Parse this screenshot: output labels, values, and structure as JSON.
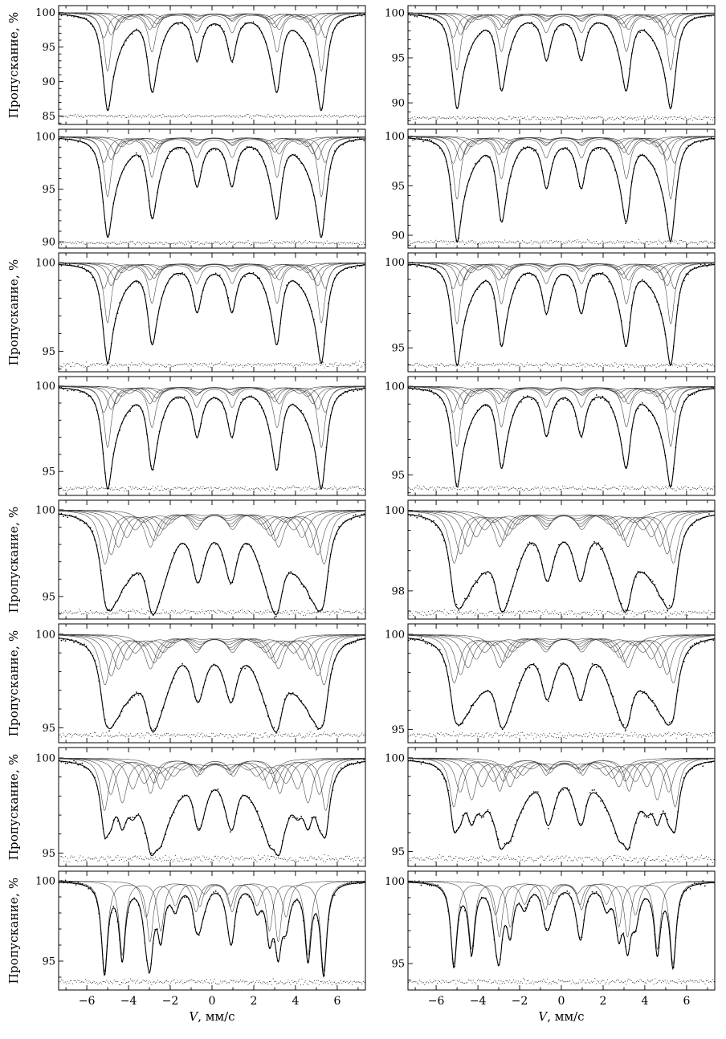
{
  "figure": {
    "ylabel": "Пропускание, %",
    "xlabel_var": "V",
    "xlabel_rest": ", мм/с",
    "x_range": [
      -7.35,
      7.35
    ],
    "x_ticks": [
      -6,
      -4,
      -2,
      0,
      2,
      4,
      6
    ],
    "x_tick_labels": [
      "−6",
      "−4",
      "−2",
      "0",
      "2",
      "4",
      "6"
    ],
    "x_minor_ticks": [
      -7,
      -5,
      -3,
      -1,
      1,
      3,
      5,
      7
    ],
    "line_ratios": [
      1,
      0.585,
      0.165
    ],
    "line_intensities": [
      3,
      2,
      1
    ],
    "colors": {
      "ink": "#000000",
      "subspectrum": "#3c3c3c",
      "background": "#ffffff"
    },
    "layout": {
      "rows": 8,
      "columns": 2
    }
  },
  "chart_data": [
    {
      "id": "r1-left",
      "row": 1,
      "col": "left",
      "type": "line",
      "show_ylabel": true,
      "y_ticks": [
        100,
        95,
        90,
        85
      ],
      "y_minor_step": 1,
      "y_range": [
        83.8,
        101.0
      ],
      "baseline": 100,
      "sextets": [
        [
          5.12,
          8.4,
          0.21,
          0.12
        ],
        [
          5.3,
          3.6,
          0.24,
          0.12
        ],
        [
          4.95,
          3.2,
          0.24,
          0.12
        ],
        [
          4.72,
          2.4,
          0.28,
          0.12
        ],
        [
          4.45,
          1.4,
          0.3,
          0.12
        ],
        [
          4.1,
          1.0,
          0.34,
          0.12
        ]
      ],
      "noise_sd": 0.12,
      "residual_level": 85.0,
      "residual_amp": 0.16,
      "seed": 11
    },
    {
      "id": "r1-right",
      "row": 1,
      "col": "right",
      "type": "line",
      "show_ylabel": false,
      "y_ticks": [
        100,
        95,
        90
      ],
      "y_minor_step": 1,
      "y_range": [
        87.6,
        100.8
      ],
      "baseline": 100,
      "sextets": [
        [
          5.12,
          6.3,
          0.21,
          0.12
        ],
        [
          5.3,
          2.7,
          0.24,
          0.12
        ],
        [
          4.95,
          2.4,
          0.24,
          0.12
        ],
        [
          4.72,
          1.8,
          0.28,
          0.12
        ],
        [
          4.45,
          1.05,
          0.3,
          0.12
        ],
        [
          4.1,
          0.75,
          0.34,
          0.12
        ]
      ],
      "noise_sd": 0.1,
      "residual_level": 88.3,
      "residual_amp": 0.14,
      "seed": 12
    },
    {
      "id": "r2-left",
      "row": 2,
      "col": "left",
      "type": "line",
      "show_ylabel": false,
      "y_ticks": [
        100,
        95,
        90
      ],
      "y_minor_step": 1,
      "y_range": [
        89.4,
        100.7
      ],
      "baseline": 100,
      "sextets": [
        [
          5.12,
          5.67,
          0.21,
          0.12
        ],
        [
          5.3,
          2.43,
          0.24,
          0.12
        ],
        [
          4.95,
          2.16,
          0.24,
          0.12
        ],
        [
          4.72,
          1.62,
          0.28,
          0.12
        ],
        [
          4.45,
          0.95,
          0.3,
          0.12
        ],
        [
          4.1,
          0.68,
          0.34,
          0.12
        ]
      ],
      "noise_sd": 0.09,
      "residual_level": 89.9,
      "residual_amp": 0.12,
      "seed": 21
    },
    {
      "id": "r2-right",
      "row": 2,
      "col": "right",
      "type": "line",
      "show_ylabel": false,
      "y_ticks": [
        100,
        95,
        90
      ],
      "y_minor_step": 1,
      "y_range": [
        88.7,
        100.7
      ],
      "baseline": 100,
      "sextets": [
        [
          5.12,
          6.3,
          0.21,
          0.12
        ],
        [
          5.3,
          2.7,
          0.24,
          0.12
        ],
        [
          4.95,
          2.4,
          0.24,
          0.12
        ],
        [
          4.72,
          1.8,
          0.28,
          0.12
        ],
        [
          4.45,
          1.05,
          0.3,
          0.12
        ],
        [
          4.1,
          0.75,
          0.34,
          0.12
        ]
      ],
      "noise_sd": 0.1,
      "residual_level": 89.3,
      "residual_amp": 0.13,
      "seed": 22
    },
    {
      "id": "r3-left",
      "row": 3,
      "col": "left",
      "type": "line",
      "show_ylabel": true,
      "y_ticks": [
        100,
        95
      ],
      "y_minor_step": 1,
      "y_range": [
        93.85,
        100.55
      ],
      "baseline": 100,
      "sextets": [
        [
          5.12,
          3.36,
          0.21,
          0.12
        ],
        [
          5.3,
          1.44,
          0.24,
          0.12
        ],
        [
          4.95,
          1.28,
          0.24,
          0.12
        ],
        [
          4.72,
          0.96,
          0.28,
          0.12
        ],
        [
          4.45,
          0.56,
          0.3,
          0.12
        ],
        [
          4.1,
          0.4,
          0.34,
          0.12
        ]
      ],
      "noise_sd": 0.06,
      "residual_level": 94.25,
      "residual_amp": 0.09,
      "seed": 31
    },
    {
      "id": "r3-right",
      "row": 3,
      "col": "right",
      "type": "line",
      "show_ylabel": false,
      "y_ticks": [
        100,
        95
      ],
      "y_minor_step": 1,
      "y_range": [
        93.6,
        100.55
      ],
      "baseline": 100,
      "sextets": [
        [
          5.12,
          3.57,
          0.21,
          0.12
        ],
        [
          5.3,
          1.53,
          0.24,
          0.12
        ],
        [
          4.95,
          1.36,
          0.24,
          0.12
        ],
        [
          4.72,
          1.02,
          0.28,
          0.12
        ],
        [
          4.45,
          0.6,
          0.3,
          0.12
        ],
        [
          4.1,
          0.43,
          0.34,
          0.12
        ]
      ],
      "noise_sd": 0.06,
      "residual_level": 94.0,
      "residual_amp": 0.09,
      "seed": 32
    },
    {
      "id": "r4-left",
      "row": 4,
      "col": "left",
      "type": "line",
      "show_ylabel": false,
      "y_ticks": [
        100,
        95
      ],
      "y_minor_step": 1,
      "y_range": [
        93.6,
        100.55
      ],
      "baseline": 100,
      "sextets": [
        [
          5.12,
          3.57,
          0.21,
          0.12
        ],
        [
          5.3,
          1.53,
          0.24,
          0.12
        ],
        [
          4.95,
          1.36,
          0.24,
          0.12
        ],
        [
          4.72,
          1.02,
          0.28,
          0.12
        ],
        [
          4.45,
          0.6,
          0.3,
          0.12
        ],
        [
          4.1,
          0.43,
          0.34,
          0.12
        ]
      ],
      "noise_sd": 0.06,
      "residual_level": 94.0,
      "residual_amp": 0.09,
      "seed": 41
    },
    {
      "id": "r4-right",
      "row": 4,
      "col": "right",
      "type": "line",
      "show_ylabel": false,
      "y_ticks": [
        100,
        95
      ],
      "y_minor_step": 1,
      "y_range": [
        93.85,
        100.55
      ],
      "baseline": 100,
      "sextets": [
        [
          5.12,
          3.36,
          0.21,
          0.12
        ],
        [
          5.3,
          1.44,
          0.24,
          0.12
        ],
        [
          4.95,
          1.28,
          0.24,
          0.12
        ],
        [
          4.72,
          0.96,
          0.28,
          0.12
        ],
        [
          4.45,
          0.56,
          0.3,
          0.12
        ],
        [
          4.1,
          0.4,
          0.34,
          0.12
        ]
      ],
      "noise_sd": 0.06,
      "residual_level": 94.25,
      "residual_amp": 0.09,
      "seed": 42
    },
    {
      "id": "r5-left",
      "row": 5,
      "col": "left",
      "type": "line",
      "show_ylabel": true,
      "y_ticks": [
        100,
        95
      ],
      "y_minor_step": 1,
      "y_range": [
        93.7,
        100.55
      ],
      "baseline": 100,
      "sextets": [
        [
          5.25,
          3.08,
          0.3,
          0.12
        ],
        [
          4.95,
          2.53,
          0.32,
          0.12
        ],
        [
          4.6,
          2.09,
          0.34,
          0.12
        ],
        [
          4.2,
          1.54,
          0.36,
          0.12
        ],
        [
          3.8,
          1.1,
          0.4,
          0.12
        ],
        [
          3.4,
          0.66,
          0.45,
          0.12
        ]
      ],
      "noise_sd": 0.07,
      "residual_level": 94.1,
      "residual_amp": 0.1,
      "seed": 51
    },
    {
      "id": "r5-right",
      "row": 5,
      "col": "right",
      "type": "line",
      "show_ylabel": false,
      "y_ticks": [
        100,
        98
      ],
      "y_minor_step": 0.5,
      "y_range": [
        97.3,
        100.25
      ],
      "baseline": 100,
      "sextets": [
        [
          5.25,
          1.29,
          0.3,
          0.12
        ],
        [
          4.95,
          1.06,
          0.32,
          0.12
        ],
        [
          4.6,
          0.87,
          0.34,
          0.12
        ],
        [
          4.2,
          0.64,
          0.36,
          0.12
        ],
        [
          3.8,
          0.46,
          0.4,
          0.12
        ],
        [
          3.4,
          0.28,
          0.45,
          0.12
        ]
      ],
      "noise_sd": 0.035,
      "residual_level": 97.45,
      "residual_amp": 0.05,
      "seed": 52
    },
    {
      "id": "r6-left",
      "row": 6,
      "col": "left",
      "type": "line",
      "show_ylabel": true,
      "y_ticks": [
        100,
        95
      ],
      "y_minor_step": 1,
      "y_range": [
        94.2,
        100.55
      ],
      "baseline": 100,
      "sextets": [
        [
          5.25,
          2.66,
          0.3,
          0.12
        ],
        [
          4.95,
          2.19,
          0.32,
          0.12
        ],
        [
          4.6,
          1.81,
          0.34,
          0.12
        ],
        [
          4.2,
          1.33,
          0.36,
          0.12
        ],
        [
          3.8,
          0.95,
          0.4,
          0.12
        ],
        [
          3.4,
          0.57,
          0.45,
          0.12
        ]
      ],
      "noise_sd": 0.07,
      "residual_level": 94.6,
      "residual_amp": 0.1,
      "seed": 61
    },
    {
      "id": "r6-right",
      "row": 6,
      "col": "right",
      "type": "line",
      "show_ylabel": false,
      "y_ticks": [
        100,
        95
      ],
      "y_minor_step": 1,
      "y_range": [
        94.3,
        100.55
      ],
      "baseline": 100,
      "sextets": [
        [
          5.25,
          2.52,
          0.3,
          0.12
        ],
        [
          4.95,
          2.07,
          0.32,
          0.12
        ],
        [
          4.6,
          1.71,
          0.34,
          0.12
        ],
        [
          4.2,
          1.26,
          0.36,
          0.12
        ],
        [
          3.8,
          0.9,
          0.4,
          0.12
        ],
        [
          3.4,
          0.54,
          0.45,
          0.12
        ]
      ],
      "noise_sd": 0.07,
      "residual_level": 94.7,
      "residual_amp": 0.1,
      "seed": 62
    },
    {
      "id": "r7-left",
      "row": 7,
      "col": "left",
      "type": "line",
      "show_ylabel": true,
      "y_ticks": [
        100,
        95
      ],
      "y_minor_step": 1,
      "y_range": [
        94.3,
        100.55
      ],
      "baseline": 100,
      "sextets": [
        [
          5.3,
          2.73,
          0.24,
          0.15
        ],
        [
          5.0,
          1.89,
          0.28,
          0.15
        ],
        [
          4.45,
          2.31,
          0.28,
          0.15
        ],
        [
          3.95,
          1.58,
          0.32,
          0.15
        ],
        [
          3.4,
          1.26,
          0.36,
          0.15
        ],
        [
          2.7,
          0.74,
          0.4,
          0.15
        ]
      ],
      "noise_sd": 0.08,
      "residual_level": 94.7,
      "residual_amp": 0.11,
      "seed": 71
    },
    {
      "id": "r7-right",
      "row": 7,
      "col": "right",
      "type": "line",
      "show_ylabel": false,
      "y_ticks": [
        100,
        95
      ],
      "y_minor_step": 1,
      "y_range": [
        94.2,
        100.55
      ],
      "baseline": 100,
      "sextets": [
        [
          5.3,
          2.6,
          0.24,
          0.15
        ],
        [
          5.0,
          1.8,
          0.28,
          0.15
        ],
        [
          4.45,
          2.2,
          0.28,
          0.15
        ],
        [
          3.95,
          1.5,
          0.32,
          0.15
        ],
        [
          3.4,
          1.2,
          0.36,
          0.15
        ],
        [
          2.7,
          0.7,
          0.4,
          0.15
        ]
      ],
      "noise_sd": 0.08,
      "residual_level": 94.6,
      "residual_amp": 0.11,
      "seed": 72
    },
    {
      "id": "r8-left",
      "row": 8,
      "col": "left",
      "type": "line",
      "show_ylabel": true,
      "y_ticks": [
        100,
        95
      ],
      "y_minor_step": 1,
      "y_range": [
        93.2,
        100.6
      ],
      "baseline": 100,
      "sextets": [
        [
          5.25,
          5.6,
          0.18,
          0.1
        ],
        [
          4.45,
          4.6,
          0.18,
          0.15
        ],
        [
          3.35,
          2.2,
          0.22,
          0.2
        ]
      ],
      "noise_sd": 0.08,
      "residual_level": 93.7,
      "residual_amp": 0.11,
      "seed": 81
    },
    {
      "id": "r8-right",
      "row": 8,
      "col": "right",
      "type": "line",
      "show_ylabel": false,
      "y_ticks": [
        100,
        95
      ],
      "y_minor_step": 1,
      "y_range": [
        93.4,
        100.6
      ],
      "baseline": 100,
      "sextets": [
        [
          5.25,
          5.0,
          0.18,
          0.1
        ],
        [
          4.45,
          4.1,
          0.18,
          0.15
        ],
        [
          3.35,
          2.0,
          0.22,
          0.2
        ]
      ],
      "noise_sd": 0.08,
      "residual_level": 93.9,
      "residual_amp": 0.11,
      "seed": 82
    }
  ]
}
